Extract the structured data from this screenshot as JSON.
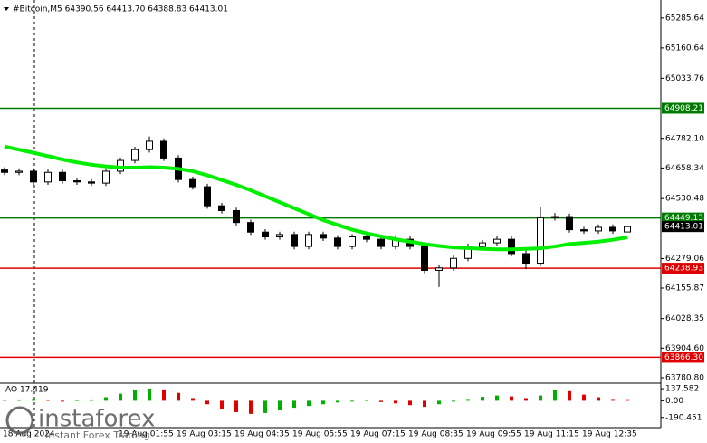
{
  "chart_data": [
    {
      "type": "candlestick",
      "title": "#Bitcoin,M5  64390.56 64413.70 64388.83 64413.01",
      "xlabels": [
        "18 Aug 2024",
        "19 Aug 01:55",
        "19 Aug 03:15",
        "19 Aug 04:35",
        "19 Aug 05:55",
        "19 Aug 07:15",
        "19 Aug 08:35",
        "19 Aug 09:55",
        "19 Aug 11:15",
        "19 Aug 12:35"
      ],
      "open": [
        64650,
        64640,
        64645,
        64600,
        64640,
        64605,
        64600,
        64595,
        64645,
        64690,
        64735,
        64770,
        64700,
        64610,
        64580,
        64500,
        64480,
        64430,
        64390,
        64370,
        64380,
        64330,
        64380,
        64365,
        64330,
        64370,
        64360,
        64330,
        64360,
        64330,
        64230,
        64240,
        64280,
        64330,
        64345,
        64360,
        64300,
        64260,
        64450,
        64455,
        64400,
        64395,
        64410,
        64390.56
      ],
      "high": [
        64662,
        64657,
        64657,
        64652,
        64652,
        64617,
        64612,
        64657,
        64702,
        64747,
        64790,
        64782,
        64712,
        64622,
        64592,
        64512,
        64492,
        64442,
        64402,
        64392,
        64392,
        64392,
        64392,
        64377,
        64382,
        64382,
        64372,
        64372,
        64372,
        64342,
        64252,
        64292,
        64342,
        64357,
        64372,
        64372,
        64312,
        64495,
        64470,
        64467,
        64412,
        64422,
        64422,
        64413.7
      ],
      "low": [
        64628,
        64628,
        64588,
        64588,
        64593,
        64588,
        64583,
        64583,
        64633,
        64678,
        64723,
        64688,
        64598,
        64568,
        64488,
        64468,
        64418,
        64378,
        64358,
        64358,
        64318,
        64318,
        64353,
        64318,
        64318,
        64348,
        64318,
        64318,
        64318,
        64218,
        64160,
        64228,
        64268,
        64318,
        64333,
        64288,
        64235,
        64248,
        64438,
        64388,
        64383,
        64383,
        64383,
        64388.83
      ],
      "close": [
        64640,
        64645,
        64600,
        64640,
        64605,
        64600,
        64595,
        64645,
        64690,
        64735,
        64770,
        64700,
        64610,
        64580,
        64500,
        64480,
        64430,
        64390,
        64370,
        64380,
        64330,
        64380,
        64365,
        64330,
        64370,
        64360,
        64330,
        64360,
        64330,
        64230,
        64240,
        64280,
        64330,
        64345,
        64360,
        64300,
        64260,
        64450,
        64455,
        64400,
        64395,
        64410,
        64395,
        64413.01
      ],
      "up_color": "#ffffff",
      "down_color": "#000000",
      "edge_color": "#000000",
      "ma": {
        "color": "#00ee00",
        "values": [
          64748,
          64735,
          64722,
          64708,
          64694,
          64682,
          64672,
          64665,
          64660,
          64660,
          64662,
          64660,
          64655,
          64645,
          64628,
          64608,
          64588,
          64565,
          64540,
          64515,
          64490,
          64465,
          64440,
          64420,
          64400,
          64385,
          64372,
          64360,
          64350,
          64340,
          64332,
          64326,
          64323,
          64320,
          64318,
          64318,
          64320,
          64322,
          64330,
          64340,
          64345,
          64350,
          64358,
          64368
        ]
      },
      "ylim": [
        63758,
        65361
      ],
      "yticks": [
        65285.64,
        65160.64,
        65033.76,
        {
          "value": 64782.1,
          "label": "64782.10"
        },
        64658.34,
        64530.48,
        64279.06,
        64155.87,
        64028.35,
        {
          "value": 63904.6,
          "label": "63904.60"
        },
        {
          "value": 63780.8,
          "label": "63780.80"
        }
      ],
      "levels": [
        {
          "value": 64908.21,
          "color": "#007a00"
        },
        {
          "value": 64449.13,
          "color": "#007a00"
        },
        {
          "value": 64238.93,
          "color": "#e00000"
        },
        {
          "value": 63866.3,
          "label": "63866.30",
          "color": "#e00000"
        }
      ],
      "current_price": 64413.01
    },
    {
      "type": "bar",
      "title": "AO 17.419",
      "values": [
        10,
        15,
        20,
        5,
        -10,
        -5,
        15,
        40,
        80,
        120,
        140,
        130,
        90,
        30,
        -40,
        -90,
        -130,
        -150,
        -140,
        -110,
        -80,
        -60,
        -40,
        -20,
        -10,
        -5,
        -15,
        -30,
        -50,
        -70,
        -40,
        -10,
        20,
        45,
        60,
        50,
        30,
        60,
        120,
        110,
        70,
        40,
        20,
        17.419
      ],
      "up_color": "#00b000",
      "down_color": "#e00000",
      "ylim": [
        -307,
        201
      ],
      "yticks": [
        137.582,
        {
          "value": 0,
          "label": "0.00"
        },
        -190.451
      ]
    }
  ],
  "branding": {
    "name": "instaforex",
    "tagline": "Instant Forex Trading"
  }
}
